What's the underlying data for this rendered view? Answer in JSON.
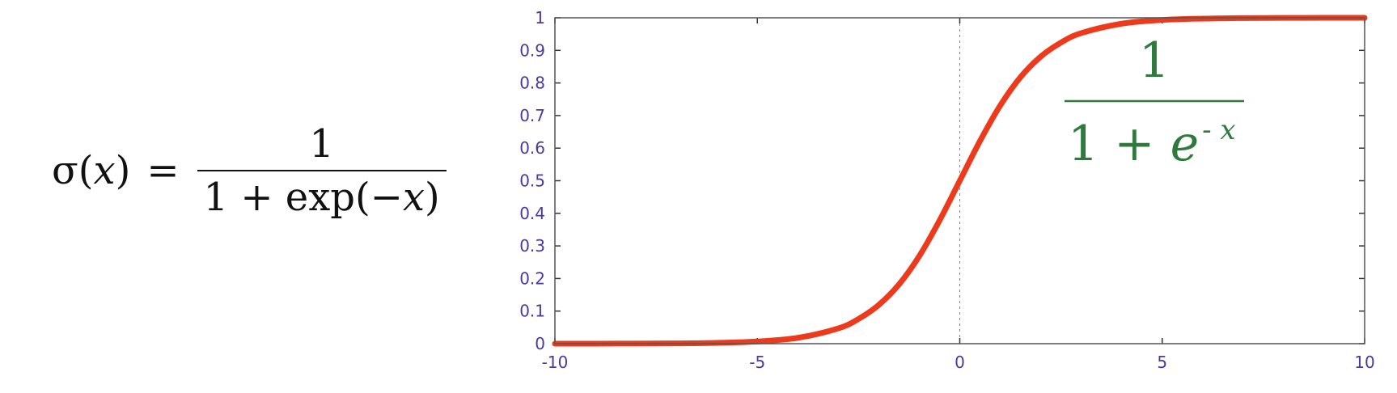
{
  "formula": {
    "lhs_func": "σ(",
    "lhs_var": "x",
    "lhs_close": ")",
    "equals": "=",
    "numerator": "1",
    "den_prefix": "1 + exp(−",
    "den_var": "x",
    "den_suffix": ")"
  },
  "chart_data": {
    "type": "line",
    "title": "",
    "xlabel": "",
    "ylabel": "",
    "xlim": [
      -10,
      10
    ],
    "ylim": [
      0,
      1
    ],
    "grid": false,
    "x_ticks": [
      -10,
      -5,
      0,
      5,
      10
    ],
    "x_tick_labels": [
      "-10",
      "-5",
      "0",
      "5",
      "10"
    ],
    "y_ticks": [
      0,
      0.1,
      0.2,
      0.3,
      0.4,
      0.5,
      0.6,
      0.7,
      0.8,
      0.9,
      1
    ],
    "y_tick_labels": [
      "0",
      "0.1",
      "0.2",
      "0.3",
      "0.4",
      "0.5",
      "0.6",
      "0.7",
      "0.8",
      "0.9",
      "1"
    ],
    "vertical_reference_line_x": 0,
    "series": [
      {
        "color": "#ee3a1c",
        "x": [
          -10,
          -9,
          -8,
          -7,
          -6,
          -5,
          -4,
          -3,
          -2.5,
          -2,
          -1.5,
          -1,
          -0.5,
          0,
          0.5,
          1,
          1.5,
          2,
          2.5,
          3,
          4,
          5,
          6,
          7,
          8,
          9,
          10
        ],
        "y": [
          5e-05,
          0.0001,
          0.0003,
          0.0009,
          0.0025,
          0.0067,
          0.018,
          0.047,
          0.076,
          0.119,
          0.182,
          0.269,
          0.378,
          0.5,
          0.622,
          0.731,
          0.818,
          0.881,
          0.924,
          0.953,
          0.982,
          0.9933,
          0.9975,
          0.9991,
          0.9997,
          0.9999,
          0.99995
        ]
      }
    ],
    "annotation": {
      "numerator": "1",
      "den_prefix": "1 + ",
      "den_base": "e",
      "den_exponent": "- x",
      "color": "#2e7a3c"
    }
  }
}
